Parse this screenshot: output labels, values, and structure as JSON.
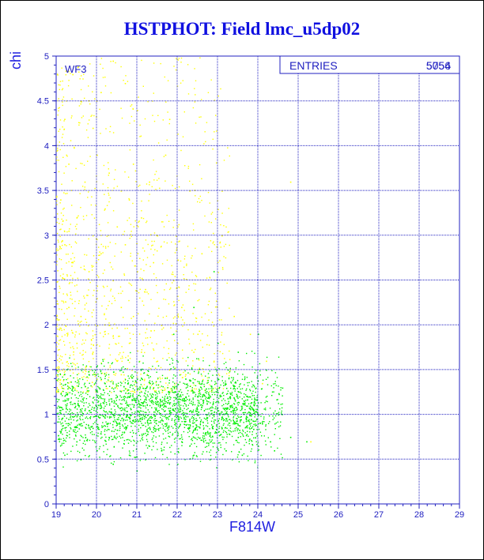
{
  "chart_data": {
    "type": "scatter",
    "title": "HSTPHOT: Field lmc_u5dp02",
    "xlabel": "F814W",
    "ylabel": "chi",
    "xlim": [
      19,
      29
    ],
    "ylim": [
      0,
      5
    ],
    "xticks": [
      "19",
      "20",
      "21",
      "22",
      "23",
      "24",
      "25",
      "26",
      "27",
      "28",
      "29"
    ],
    "yticks": [
      "0",
      "0.5",
      "1",
      "1.5",
      "2",
      "2.5",
      "3",
      "3.5",
      "4",
      "4.5",
      "5"
    ],
    "grid": true,
    "annotation": "WF3",
    "stats": {
      "label": "ENTRIES",
      "value": "5054",
      "value_overlay": "5756"
    },
    "series": [
      {
        "color": "#ffff00",
        "note_density": "yellow points concentrated between F814W 19-23, chi 1.2-5",
        "points": [
          [
            19.2,
            4.3
          ],
          [
            19.4,
            4.8
          ],
          [
            19.6,
            4.5
          ],
          [
            19.9,
            4.2
          ],
          [
            20.1,
            4.6
          ],
          [
            20.4,
            4.95
          ],
          [
            20.7,
            4.7
          ],
          [
            21.0,
            4.4
          ],
          [
            19.3,
            3.8
          ],
          [
            19.7,
            3.6
          ],
          [
            20.0,
            3.9
          ],
          [
            20.3,
            3.7
          ],
          [
            20.6,
            3.5
          ],
          [
            20.9,
            3.8
          ],
          [
            21.3,
            3.6
          ],
          [
            21.7,
            3.9
          ],
          [
            19.5,
            3.2
          ],
          [
            19.9,
            3.0
          ],
          [
            20.2,
            3.3
          ],
          [
            20.5,
            3.1
          ],
          [
            20.8,
            3.4
          ],
          [
            21.1,
            3.2
          ],
          [
            21.5,
            3.0
          ],
          [
            22.0,
            3.1
          ],
          [
            19.4,
            2.7
          ],
          [
            19.8,
            2.6
          ],
          [
            20.1,
            2.8
          ],
          [
            20.4,
            2.5
          ],
          [
            20.7,
            2.9
          ],
          [
            21.0,
            2.6
          ],
          [
            21.4,
            2.7
          ],
          [
            21.9,
            2.5
          ],
          [
            19.3,
            2.2
          ],
          [
            19.6,
            2.1
          ],
          [
            20.0,
            2.3
          ],
          [
            20.3,
            2.0
          ],
          [
            20.6,
            2.2
          ],
          [
            20.9,
            2.1
          ],
          [
            21.2,
            2.4
          ],
          [
            21.6,
            2.0
          ],
          [
            22.1,
            2.2
          ],
          [
            22.5,
            1.9
          ],
          [
            19.5,
            1.8
          ],
          [
            19.9,
            1.7
          ],
          [
            20.2,
            1.9
          ],
          [
            20.5,
            1.6
          ],
          [
            20.8,
            1.8
          ],
          [
            21.1,
            1.7
          ],
          [
            21.5,
            1.6
          ],
          [
            22.0,
            1.8
          ],
          [
            22.4,
            1.7
          ],
          [
            22.9,
            1.6
          ],
          [
            23.3,
            1.5
          ],
          [
            24.8,
            3.6
          ],
          [
            25.3,
            0.7
          ],
          [
            22.8,
            2.4
          ],
          [
            23.4,
            2.1
          ],
          [
            22.3,
            3.5
          ],
          [
            21.8,
            4.3
          ],
          [
            23.1,
            3.0
          ],
          [
            22.6,
            2.8
          ],
          [
            23.8,
            1.9
          ],
          [
            24.2,
            1.6
          ],
          [
            20.0,
            1.4
          ],
          [
            20.6,
            1.45
          ],
          [
            21.3,
            1.35
          ],
          [
            19.7,
            1.5
          ],
          [
            22.2,
            1.45
          ],
          [
            23.0,
            1.3
          ],
          [
            24.1,
            1.35
          ],
          [
            19.1,
            3.4
          ],
          [
            19.2,
            2.9
          ]
        ]
      },
      {
        "color": "#00ee00",
        "note_density": "green points concentrated between F814W 19-24.5, chi 0.4-1.6",
        "points": [
          [
            19.1,
            0.8
          ],
          [
            19.3,
            0.95
          ],
          [
            19.5,
            0.7
          ],
          [
            19.7,
            1.05
          ],
          [
            19.9,
            0.85
          ],
          [
            20.1,
            1.1
          ],
          [
            20.3,
            0.75
          ],
          [
            20.5,
            0.95
          ],
          [
            20.7,
            1.2
          ],
          [
            20.9,
            0.8
          ],
          [
            21.1,
            1.0
          ],
          [
            21.3,
            0.65
          ],
          [
            21.5,
            1.15
          ],
          [
            21.7,
            0.9
          ],
          [
            21.9,
            1.05
          ],
          [
            22.1,
            0.7
          ],
          [
            22.3,
            0.95
          ],
          [
            22.5,
            1.2
          ],
          [
            22.7,
            0.8
          ],
          [
            22.9,
            1.0
          ],
          [
            23.1,
            0.85
          ],
          [
            23.3,
            1.1
          ],
          [
            23.5,
            0.75
          ],
          [
            23.7,
            0.95
          ],
          [
            23.9,
            1.15
          ],
          [
            24.1,
            0.9
          ],
          [
            24.3,
            0.7
          ],
          [
            24.5,
            1.0
          ],
          [
            19.4,
            1.3
          ],
          [
            19.8,
            1.45
          ],
          [
            20.2,
            1.35
          ],
          [
            20.6,
            1.5
          ],
          [
            21.0,
            1.4
          ],
          [
            21.4,
            1.3
          ],
          [
            21.8,
            1.25
          ],
          [
            22.2,
            1.4
          ],
          [
            22.6,
            1.35
          ],
          [
            23.0,
            1.25
          ],
          [
            23.4,
            1.3
          ],
          [
            23.8,
            1.2
          ],
          [
            19.2,
            0.55
          ],
          [
            19.6,
            0.5
          ],
          [
            20.0,
            0.6
          ],
          [
            20.4,
            0.45
          ],
          [
            20.8,
            0.55
          ],
          [
            21.2,
            0.5
          ],
          [
            21.6,
            0.6
          ],
          [
            22.0,
            0.45
          ],
          [
            22.4,
            0.55
          ],
          [
            22.8,
            0.5
          ],
          [
            23.2,
            0.6
          ],
          [
            23.6,
            0.55
          ],
          [
            24.0,
            0.65
          ],
          [
            24.4,
            0.6
          ],
          [
            24.8,
            0.75
          ],
          [
            25.2,
            0.7
          ],
          [
            21.9,
            1.9
          ],
          [
            22.4,
            2.2
          ],
          [
            23.0,
            1.8
          ],
          [
            23.5,
            1.7
          ],
          [
            24.2,
            1.5
          ],
          [
            24.6,
            1.3
          ],
          [
            22.9,
            2.6
          ],
          [
            24.0,
            1.9
          ]
        ]
      }
    ]
  }
}
